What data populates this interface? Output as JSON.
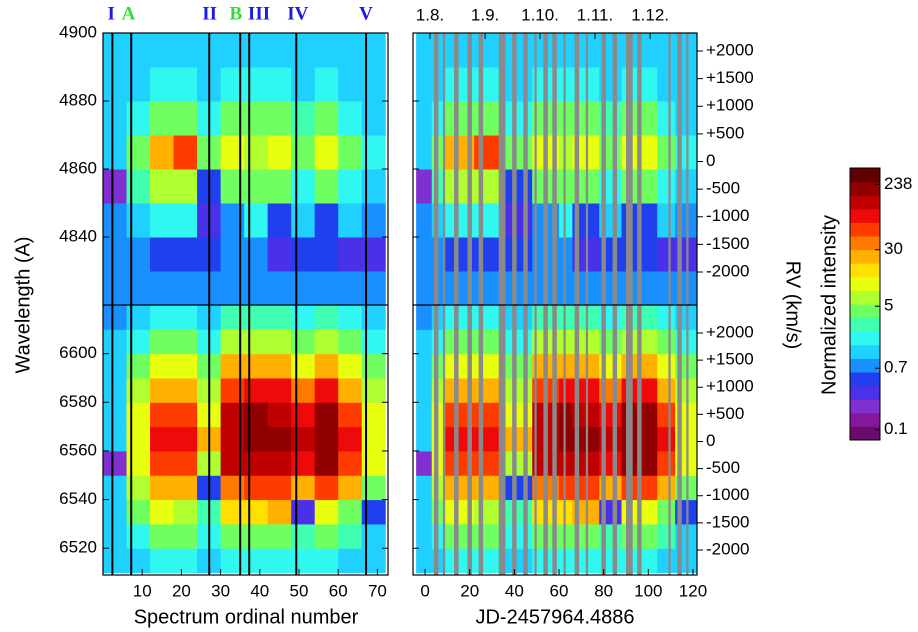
{
  "chart_data": {
    "type": "heatmap",
    "y_label": "Wavelength (A)",
    "x_label": "Spectrum ordinal number",
    "x2_label": "JD-2457964.4886",
    "y2_label": "RV (km/s)",
    "colorbar_label": "Normalized intensity",
    "xlim": [
      0,
      72.7
    ],
    "xticks": [
      10,
      20,
      30,
      40,
      50,
      60,
      70
    ],
    "x_edges": [
      0,
      6,
      12,
      18,
      24,
      30,
      36,
      42,
      48,
      54,
      60,
      66,
      72
    ],
    "jdlim": [
      -5.4,
      121.8
    ],
    "jdticks": [
      0,
      20,
      40,
      60,
      80,
      100,
      120
    ],
    "jd_edges": [
      -4,
      3,
      9,
      22,
      36,
      48,
      60,
      66,
      78,
      88,
      104,
      112,
      121.5
    ],
    "date_ticks": [
      {
        "value": 2.2,
        "label": "1.8."
      },
      {
        "value": 26.9,
        "label": "1.9."
      },
      {
        "value": 51.5,
        "label": "1.10."
      },
      {
        "value": 76.1,
        "label": "1.11."
      },
      {
        "value": 100.8,
        "label": "1.12."
      }
    ],
    "events": [
      {
        "label": "I",
        "x": 2.1,
        "color": "#1a1ae6"
      },
      {
        "label": "A",
        "x": 6.5,
        "color": "#33dd33"
      },
      {
        "label": "II",
        "x": 27.2,
        "color": "#1a1ae6"
      },
      {
        "label": "B",
        "x": 33.9,
        "color": "#33dd33"
      },
      {
        "label": "III",
        "x": 39.8,
        "color": "#1a1ae6"
      },
      {
        "label": "IV",
        "x": 49.7,
        "color": "#1a1ae6"
      },
      {
        "label": "V",
        "x": 67.1,
        "color": "#1a1ae6"
      }
    ],
    "event_lines": [
      2.4,
      7.2,
      27.1,
      35,
      37.3,
      49.3,
      67.1
    ],
    "gap_color": "#8a8a8a",
    "gaps": [
      [
        4,
        6
      ],
      [
        8,
        9
      ],
      [
        13,
        15
      ],
      [
        19,
        21
      ],
      [
        24,
        26
      ],
      [
        33,
        36
      ],
      [
        39,
        41
      ],
      [
        44,
        46
      ],
      [
        49,
        50
      ],
      [
        53,
        55
      ],
      [
        57,
        59
      ],
      [
        62,
        63
      ],
      [
        67,
        69
      ],
      [
        72,
        73
      ],
      [
        79,
        81
      ],
      [
        84,
        86
      ],
      [
        90,
        93
      ],
      [
        95,
        97
      ],
      [
        109,
        110
      ],
      [
        113,
        115
      ],
      [
        117,
        118
      ]
    ],
    "panels": [
      {
        "ylim": [
          4820,
          4900
        ],
        "yticks": [
          4840,
          4860,
          4880,
          4900
        ],
        "y_edges": [
          4820,
          4830,
          4840,
          4850,
          4860,
          4870,
          4880,
          4890,
          4900
        ],
        "rvlim": [
          -2597,
          2326
        ],
        "rvticks": [
          {
            "value": 2000,
            "label": "+2000"
          },
          {
            "value": 1500,
            "label": "+1500"
          },
          {
            "value": 1000,
            "label": "+1000"
          },
          {
            "value": 500,
            "label": "+500"
          },
          0,
          -500,
          -1000,
          -1500,
          -2000
        ],
        "z": [
          [
            0.8,
            0.8,
            0.8,
            0.8,
            0.8,
            0.8,
            0.8,
            0.8,
            0.8,
            0.8,
            0.8,
            0.8
          ],
          [
            0.8,
            0.8,
            0.6,
            0.6,
            0.6,
            0.8,
            0.8,
            0.3,
            0.6,
            0.5,
            0.4,
            0.4
          ],
          [
            0.9,
            1.2,
            1.5,
            1.5,
            0.3,
            0.7,
            1.8,
            0.6,
            1,
            0.6,
            1,
            0.9
          ],
          [
            0.2,
            2.5,
            6,
            6,
            0.5,
            4,
            4,
            5,
            2,
            5,
            2,
            1.2
          ],
          [
            1.1,
            4,
            30,
            60,
            4,
            10,
            8,
            10,
            5,
            10,
            4,
            2
          ],
          [
            1,
            2,
            5,
            5,
            2,
            5,
            4,
            5,
            2.5,
            4,
            2,
            1.2
          ],
          [
            1,
            1.1,
            1.5,
            1.5,
            1.1,
            1.5,
            2,
            2,
            1.2,
            1.5,
            1.1,
            1
          ],
          [
            1,
            1,
            1.1,
            1.1,
            1,
            1.1,
            1.1,
            1.1,
            1,
            1.1,
            1,
            1
          ]
        ]
      },
      {
        "ylim": [
          6509,
          6620
        ],
        "yticks": [
          6520,
          6540,
          6560,
          6580,
          6600
        ],
        "y_edges": [
          6510,
          6520,
          6530,
          6540,
          6550,
          6560,
          6570,
          6580,
          6590,
          6600,
          6610,
          6620
        ],
        "rvlim": [
          -2461,
          2516
        ],
        "rvticks": [
          {
            "value": 2000,
            "label": "+2000"
          },
          {
            "value": 1500,
            "label": "+1500"
          },
          {
            "value": 1000,
            "label": "+1000"
          },
          {
            "value": 500,
            "label": "+500"
          },
          0,
          -500,
          -1000,
          -1500,
          -2000
        ],
        "z": [
          [
            1,
            1.2,
            2,
            2,
            1.2,
            2,
            2,
            2,
            1.5,
            2,
            1.2,
            1
          ],
          [
            1,
            2,
            4,
            4,
            2,
            5,
            5,
            5,
            2.5,
            4,
            2.5,
            1.2
          ],
          [
            1,
            4,
            10,
            8,
            2.5,
            15,
            15,
            20,
            0.3,
            10,
            5,
            0.5
          ],
          [
            1,
            6,
            30,
            20,
            0.5,
            40,
            60,
            60,
            30,
            60,
            20,
            5
          ],
          [
            0.2,
            10,
            60,
            60,
            6,
            120,
            160,
            140,
            80,
            200,
            60,
            10
          ],
          [
            1.2,
            12,
            80,
            90,
            20,
            150,
            220,
            180,
            120,
            238,
            80,
            12
          ],
          [
            1.2,
            10,
            50,
            60,
            12,
            120,
            180,
            150,
            90,
            220,
            60,
            10
          ],
          [
            1.1,
            6,
            25,
            25,
            6,
            60,
            80,
            80,
            40,
            80,
            25,
            6
          ],
          [
            1,
            4,
            10,
            10,
            4,
            20,
            30,
            30,
            12,
            30,
            12,
            4
          ],
          [
            1,
            2,
            5,
            5,
            2,
            6,
            6,
            6,
            4,
            6,
            4,
            2
          ],
          [
            0.9,
            1.1,
            2,
            2,
            1.2,
            2.5,
            2.5,
            2.5,
            2,
            2.5,
            2,
            1.2
          ]
        ]
      }
    ],
    "colorbar": {
      "log": true,
      "lim": [
        0.072,
        400
      ],
      "ticks": [
        0.1,
        0.7,
        5,
        30,
        238
      ],
      "colors": [
        "#6a0a6a",
        "#85189a",
        "#8030d0",
        "#4a30e8",
        "#2040f0",
        "#1a90ff",
        "#20d0ff",
        "#30f8f0",
        "#40ffb0",
        "#70ff60",
        "#b0ff30",
        "#e8ff10",
        "#ffe000",
        "#ffb000",
        "#ff7a00",
        "#ff3c00",
        "#ee0a0a",
        "#c00000",
        "#900000",
        "#600000"
      ]
    }
  }
}
